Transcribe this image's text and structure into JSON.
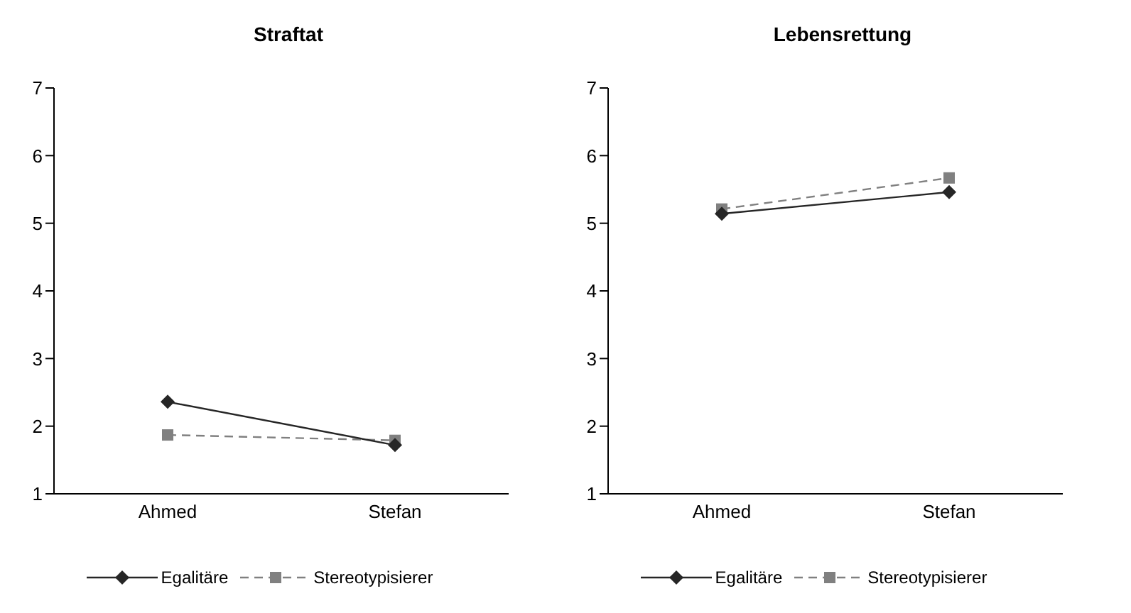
{
  "chart_data": [
    {
      "type": "line",
      "title": "Straftat",
      "categories": [
        "Ahmed",
        "Stefan"
      ],
      "series": [
        {
          "name": "Egalitäre",
          "color": "#262626",
          "values": [
            2.36,
            1.72
          ],
          "marker": "diamond",
          "line_style": "solid"
        },
        {
          "name": "Stereotypisierer",
          "color": "#808080",
          "values": [
            1.87,
            1.79
          ],
          "marker": "square",
          "line_style": "dashed"
        }
      ],
      "ylim": [
        1,
        7
      ],
      "yticks": [
        1,
        2,
        3,
        4,
        5,
        6,
        7
      ],
      "grid": false,
      "legend": "bottom"
    },
    {
      "type": "line",
      "title": "Lebensrettung",
      "categories": [
        "Ahmed",
        "Stefan"
      ],
      "series": [
        {
          "name": "Egalitäre",
          "color": "#262626",
          "values": [
            5.14,
            5.46
          ],
          "marker": "diamond",
          "line_style": "solid"
        },
        {
          "name": "Stereotypisierer",
          "color": "#808080",
          "values": [
            5.21,
            5.67
          ],
          "marker": "square",
          "line_style": "dashed"
        }
      ],
      "ylim": [
        1,
        7
      ],
      "yticks": [
        1,
        2,
        3,
        4,
        5,
        6,
        7
      ],
      "grid": false,
      "legend": "bottom"
    }
  ]
}
